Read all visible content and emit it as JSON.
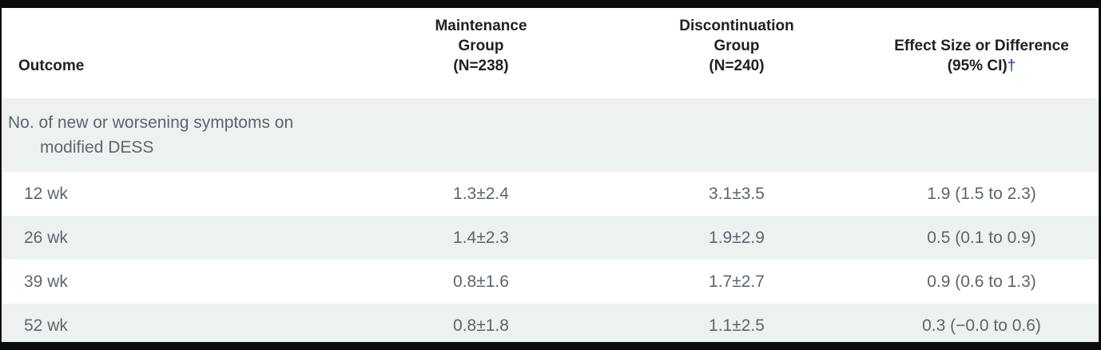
{
  "colors": {
    "heavy_rule": "#0b0b0b",
    "shaded_row_bg": "#edf2f0",
    "body_text": "#5d656c",
    "header_text": "#202124",
    "footnote_marker_blue": "#3a5fa5"
  },
  "table": {
    "header": {
      "outcome": "Outcome",
      "maintenance_lines": [
        "Maintenance",
        "Group",
        "(N=238)"
      ],
      "discontinuation_lines": [
        "Discontinuation",
        "Group",
        "(N=240)"
      ],
      "effect_lines": [
        "Effect Size or Difference",
        "(95% CI)"
      ],
      "footnote_marker": "†"
    },
    "rows": [
      {
        "type": "section",
        "outcome_line1": "No. of new or worsening symptoms on",
        "outcome_line2": "modified DESS",
        "maintenance": "",
        "discontinuation": "",
        "effect": ""
      },
      {
        "type": "data",
        "outcome": "12 wk",
        "maintenance": "1.3±2.4",
        "discontinuation": "3.1±3.5",
        "effect": "1.9 (1.5 to 2.3)"
      },
      {
        "type": "data",
        "outcome": "26 wk",
        "maintenance": "1.4±2.3",
        "discontinuation": "1.9±2.9",
        "effect": "0.5 (0.1 to 0.9)"
      },
      {
        "type": "data",
        "outcome": "39 wk",
        "maintenance": "0.8±1.6",
        "discontinuation": "1.7±2.7",
        "effect": "0.9 (0.6 to 1.3)"
      },
      {
        "type": "data",
        "outcome": "52 wk",
        "maintenance": "0.8±1.8",
        "discontinuation": "1.1±2.5",
        "effect": "0.3 (−0.0 to 0.6)"
      }
    ]
  }
}
